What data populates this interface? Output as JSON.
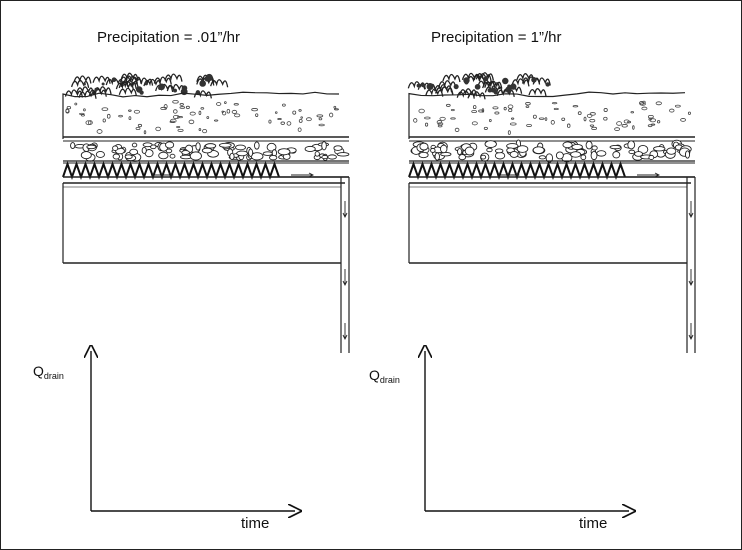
{
  "panels": [
    {
      "precipitation_label": "Precipitation = .01”/hr",
      "q_main": "Q",
      "q_sub": "drain",
      "x_axis_label": "time"
    },
    {
      "precipitation_label": "Precipitation = 1”/hr",
      "q_main": "Q",
      "q_sub": "drain",
      "x_axis_label": "time"
    }
  ]
}
